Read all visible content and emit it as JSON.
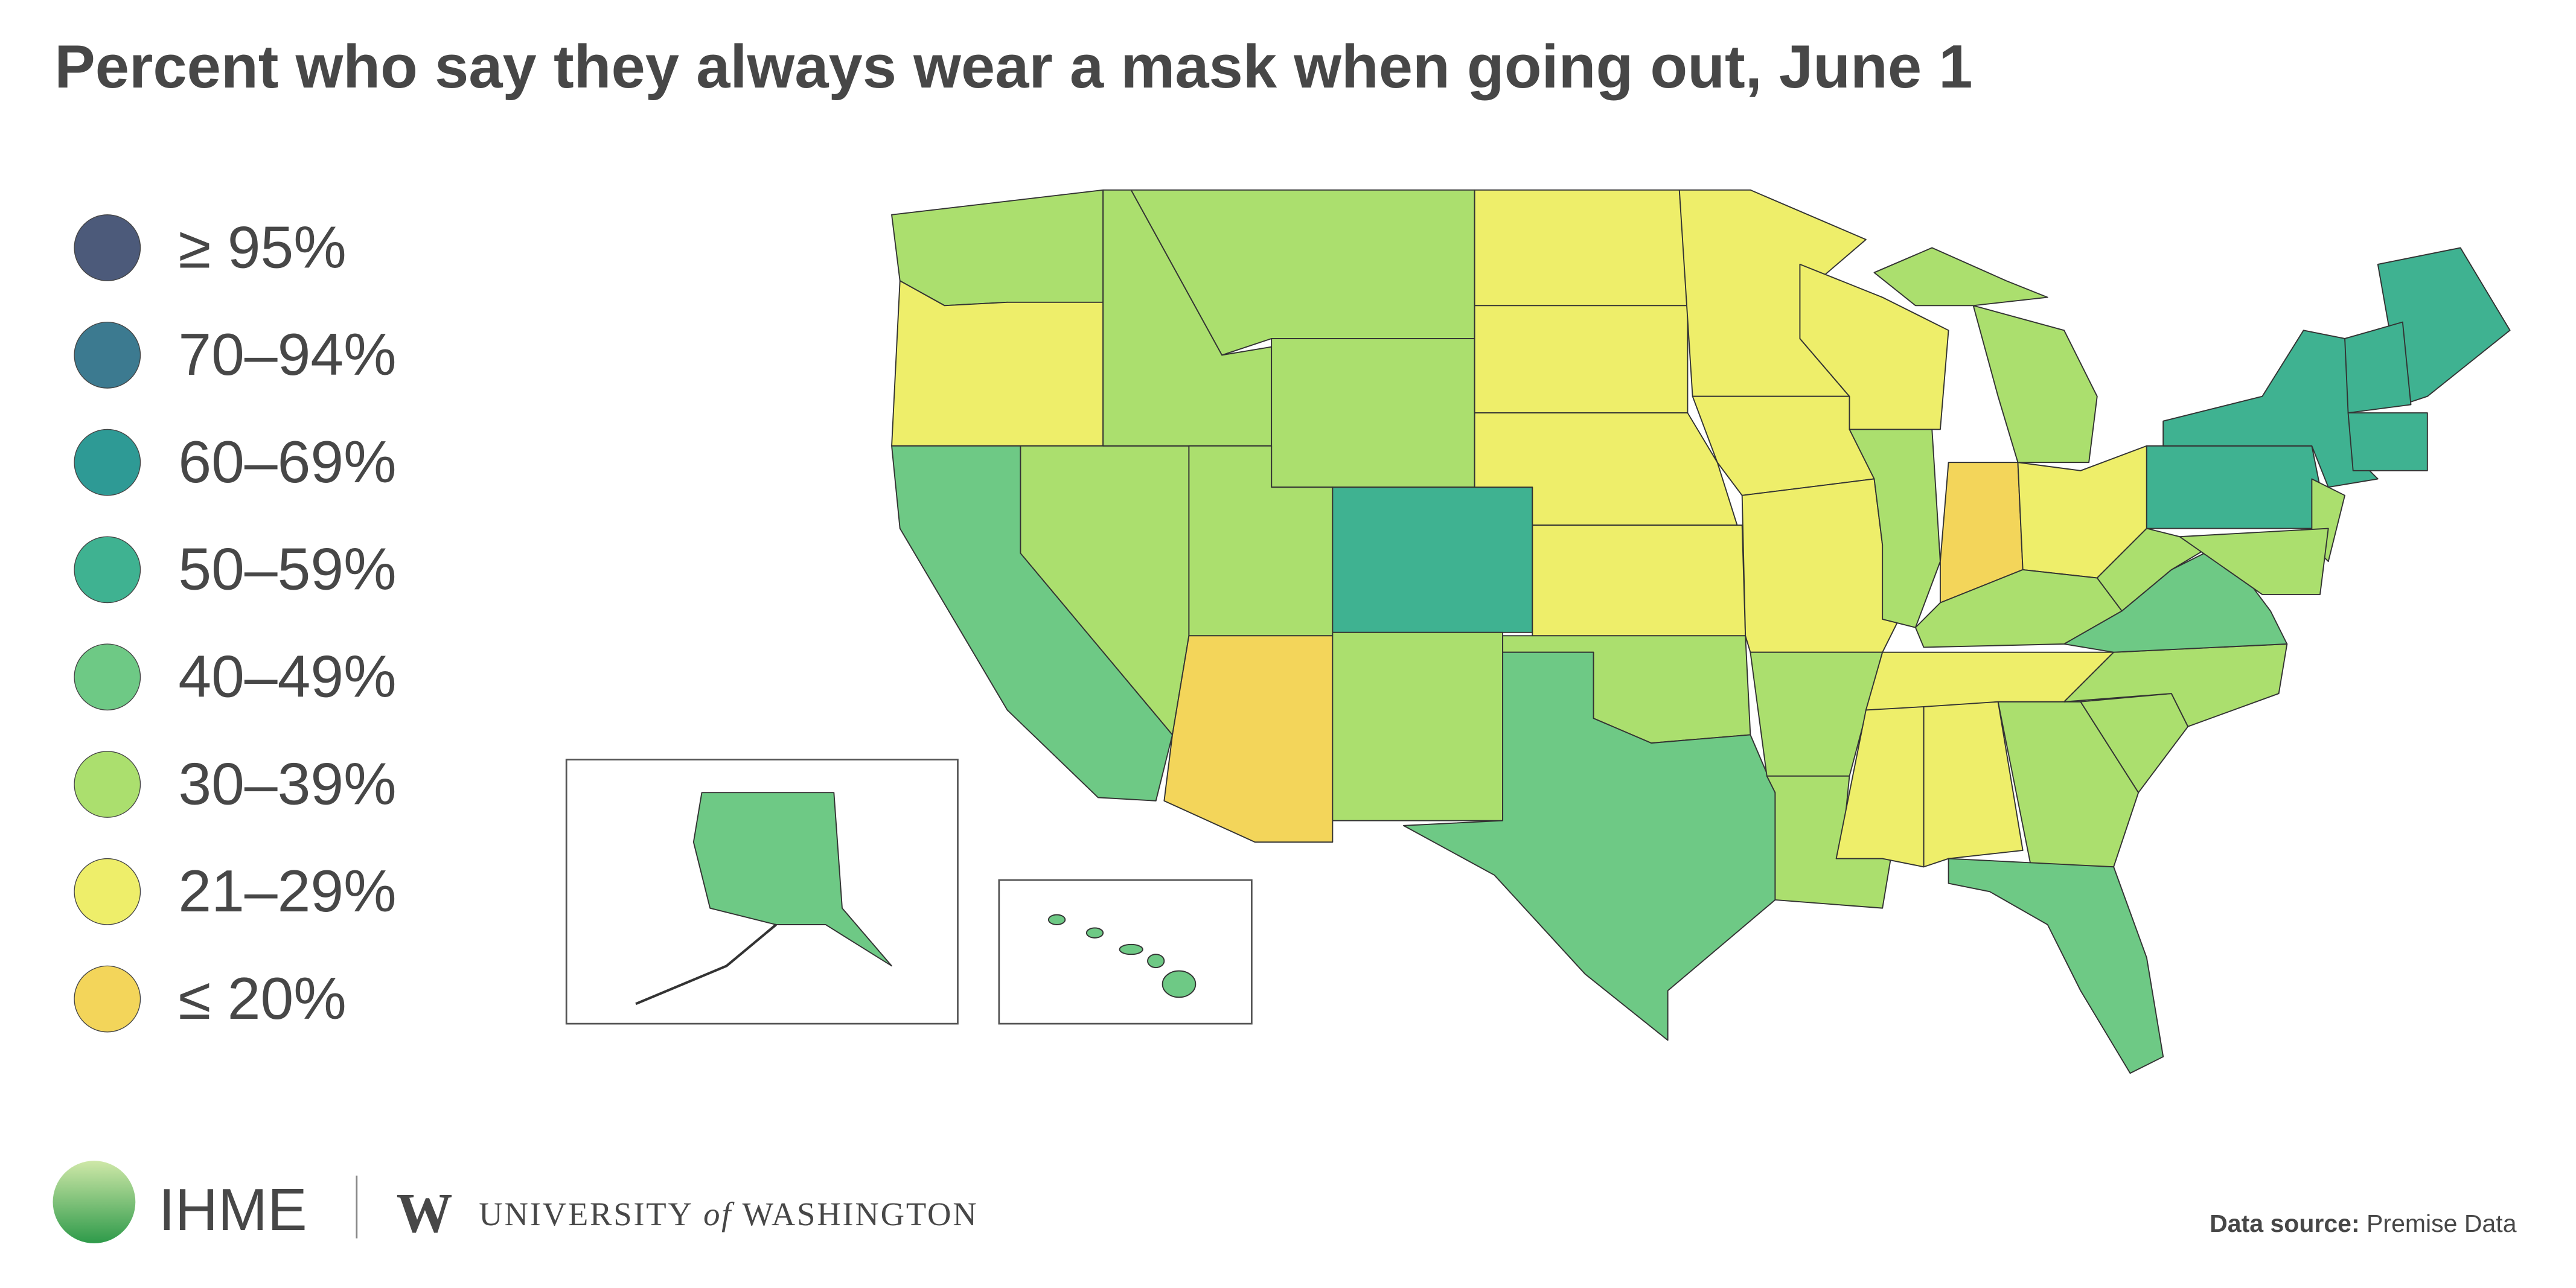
{
  "title": "Percent who say they always wear a mask when going out, June 1",
  "legend": [
    {
      "label": "≥ 95%",
      "color": "#4c5a7a"
    },
    {
      "label": "70–94%",
      "color": "#3c7a90"
    },
    {
      "label": "60–69%",
      "color": "#2e9a95"
    },
    {
      "label": "50–59%",
      "color": "#3fb291"
    },
    {
      "label": "40–49%",
      "color": "#6ec985"
    },
    {
      "label": "30–39%",
      "color": "#abdf6e"
    },
    {
      "label": "21–29%",
      "color": "#eeee6a"
    },
    {
      "label": "≤ 20%",
      "color": "#f3d55a"
    }
  ],
  "footer": {
    "org": "IHME",
    "university_mark": "W",
    "university_1": "UNIVERSITY",
    "university_2": "of",
    "university_3": "WASHINGTON",
    "source_label": "Data source:",
    "source": "Premise Data"
  }
}
